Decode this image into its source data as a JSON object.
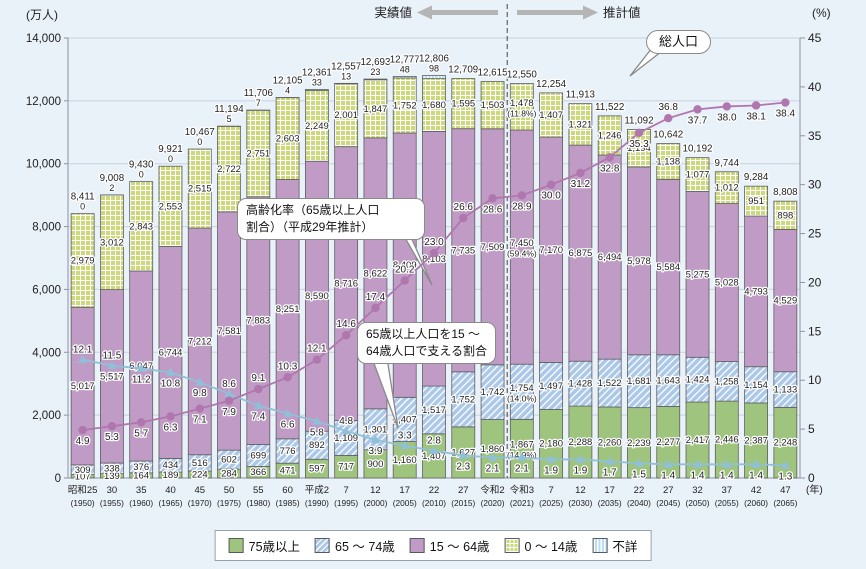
{
  "annotations": {
    "actual_label": "実績値",
    "projection_label": "推計値",
    "total_population": "総人口",
    "aging_rate": "高齢化率（65歳以上人口\n割合）（平成29年推計）",
    "support_ratio": "65歳以上人口を15 ～\n64歳人口で支える割合"
  },
  "legend": [
    {
      "label": "75歳以上",
      "key": "age75plus"
    },
    {
      "label": "65 ～ 74歳",
      "key": "age65_74"
    },
    {
      "label": "15 ～ 64歳",
      "key": "age15_64"
    },
    {
      "label": "0 ～ 14歳",
      "key": "age0_14"
    },
    {
      "label": "不詳",
      "key": "unknown"
    }
  ],
  "colors": {
    "age75plus": "#9fc47d",
    "age65_74": "#abc8e8",
    "age15_64": "#bf9bc5",
    "age0_14": "#cbd97b",
    "unknown": "#b9def1",
    "aging_line": "#b077ae",
    "support_line": "#8fc0d8",
    "grid": "#c9d3df",
    "axis": "#8b95a1",
    "divider": "#444444",
    "arrow": "#b5b5b5",
    "text": "#222222"
  },
  "chart_data": {
    "type": "stacked-bar+line",
    "left_axis": {
      "unit": "(万人)",
      "min": 0,
      "max": 14000,
      "step": 2000
    },
    "right_axis": {
      "unit": "(%)",
      "min": 0,
      "max": 45,
      "step": 5
    },
    "x_axis_suffix": "(年)",
    "divider_after_index": 14,
    "x_era": [
      "昭和25",
      "30",
      "35",
      "40",
      "45",
      "50",
      "55",
      "60",
      "平成2",
      "7",
      "12",
      "17",
      "22",
      "27",
      "令和2",
      "令和3",
      "7",
      "12",
      "17",
      "22",
      "27",
      "32",
      "37",
      "42",
      "47"
    ],
    "x_year": [
      "(1950)",
      "(1955)",
      "(1960)",
      "(1965)",
      "(1970)",
      "(1975)",
      "(1980)",
      "(1985)",
      "(1990)",
      "(1995)",
      "(2000)",
      "(2005)",
      "(2010)",
      "(2015)",
      "(2020)",
      "(2021)",
      "(2025)",
      "(2030)",
      "(2035)",
      "(2040)",
      "(2045)",
      "(2050)",
      "(2055)",
      "(2060)",
      "(2065)"
    ],
    "total": [
      8411,
      9008,
      9430,
      9921,
      10467,
      11194,
      11706,
      12105,
      12361,
      12557,
      12693,
      12777,
      12806,
      12709,
      12615,
      12550,
      12254,
      11913,
      11522,
      11092,
      10642,
      10192,
      9744,
      9284,
      8808
    ],
    "unknown": [
      0,
      2,
      0,
      0,
      0,
      5,
      7,
      4,
      33,
      13,
      23,
      48,
      98,
      null,
      null,
      null,
      null,
      null,
      null,
      null,
      null,
      null,
      null,
      null,
      null
    ],
    "age0_14": [
      2979,
      3012,
      2843,
      2553,
      2515,
      2722,
      2751,
      2603,
      2249,
      2001,
      1847,
      1752,
      1680,
      1595,
      1503,
      1478,
      1407,
      1321,
      1246,
      1194,
      1138,
      1077,
      1012,
      951,
      898
    ],
    "age15_64": [
      5017,
      5517,
      6047,
      6744,
      7212,
      7581,
      7883,
      8251,
      8590,
      8716,
      8622,
      8409,
      8103,
      7735,
      7509,
      7450,
      7170,
      6875,
      6494,
      5978,
      5584,
      5275,
      5028,
      4793,
      4529
    ],
    "age65_74": [
      309,
      338,
      376,
      434,
      516,
      602,
      699,
      776,
      892,
      1109,
      1301,
      1407,
      1517,
      1752,
      1742,
      1754,
      1497,
      1428,
      1522,
      1681,
      1643,
      1424,
      1258,
      1154,
      1133
    ],
    "age75plus": [
      107,
      139,
      164,
      189,
      224,
      284,
      366,
      471,
      597,
      717,
      900,
      1160,
      1407,
      1627,
      1860,
      1867,
      2180,
      2288,
      2260,
      2239,
      2277,
      2417,
      2446,
      2387,
      2248
    ],
    "pct_labels_2021": {
      "index": 15,
      "age0_14": "(11.8%)",
      "age15_64": "(59.4%)",
      "age65_74": "(14.0%)",
      "age75plus": "(14.9%)"
    },
    "aging_rate_pct": [
      4.9,
      5.3,
      5.7,
      6.3,
      7.1,
      7.9,
      9.1,
      10.3,
      12.1,
      14.6,
      17.4,
      20.2,
      23.0,
      26.6,
      28.6,
      28.9,
      30.0,
      31.2,
      32.8,
      35.3,
      36.8,
      37.7,
      38.0,
      38.1,
      38.4
    ],
    "support_ratio": [
      12.1,
      11.5,
      11.2,
      10.8,
      9.8,
      8.6,
      7.4,
      6.6,
      5.8,
      4.8,
      3.9,
      3.3,
      2.8,
      2.3,
      2.1,
      2.1,
      1.9,
      1.9,
      1.7,
      1.5,
      1.4,
      1.4,
      1.4,
      1.4,
      1.3
    ]
  }
}
